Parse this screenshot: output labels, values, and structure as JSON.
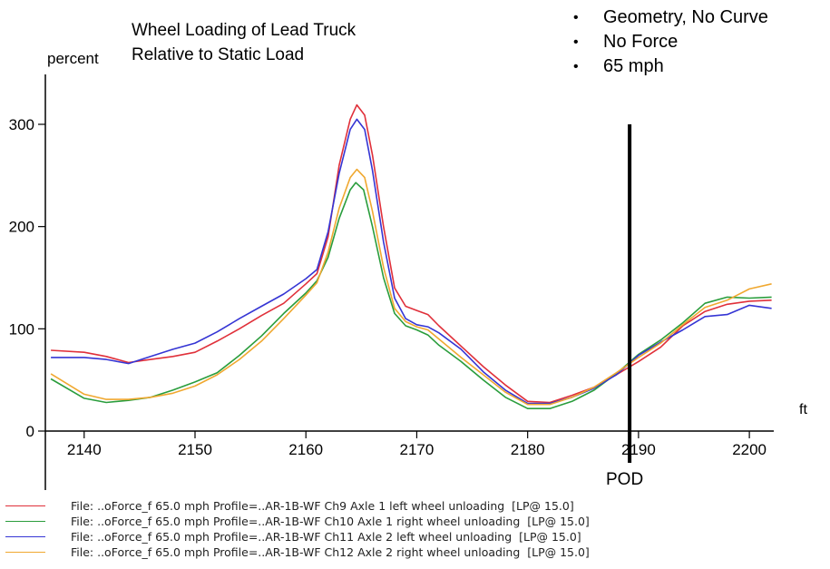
{
  "title_lines": [
    "Wheel Loading of Lead Truck",
    "Relative to Static Load"
  ],
  "bullets": [
    "Geometry, No Curve",
    "No Force",
    "65 mph"
  ],
  "chart_data": {
    "type": "line",
    "ylabel": "percent",
    "xlabel": "ft",
    "xlim": [
      2136.5,
      2202.2
    ],
    "ylim": [
      0,
      350
    ],
    "xticks": [
      2140,
      2150,
      2160,
      2170,
      2180,
      2190,
      2200
    ],
    "yticks": [
      0,
      100,
      200,
      300
    ],
    "annotation": {
      "label": "POD",
      "x": 2189.2
    },
    "series": [
      {
        "name": "File: ..oForce_f 65.0 mph Profile=..AR-1B-WF Ch9 Axle 1 left wheel unloading  [LP@ 15.0]",
        "color": "#e0303a",
        "points": [
          [
            2137,
            79
          ],
          [
            2140,
            77
          ],
          [
            2142,
            73
          ],
          [
            2144,
            67
          ],
          [
            2146,
            70
          ],
          [
            2148,
            73
          ],
          [
            2150,
            77
          ],
          [
            2152,
            88
          ],
          [
            2154,
            100
          ],
          [
            2156,
            113
          ],
          [
            2158,
            125
          ],
          [
            2160,
            144
          ],
          [
            2161,
            154
          ],
          [
            2162,
            190
          ],
          [
            2163,
            260
          ],
          [
            2164,
            305
          ],
          [
            2164.6,
            319
          ],
          [
            2165.3,
            309
          ],
          [
            2166,
            270
          ],
          [
            2167,
            200
          ],
          [
            2168,
            140
          ],
          [
            2169,
            122
          ],
          [
            2170,
            118
          ],
          [
            2171,
            114
          ],
          [
            2172,
            103
          ],
          [
            2174,
            83
          ],
          [
            2176,
            63
          ],
          [
            2178,
            45
          ],
          [
            2180,
            29
          ],
          [
            2182,
            28
          ],
          [
            2184,
            35
          ],
          [
            2186,
            43
          ],
          [
            2188,
            55
          ],
          [
            2190,
            68
          ],
          [
            2192,
            82
          ],
          [
            2194,
            103
          ],
          [
            2196,
            117
          ],
          [
            2198,
            124
          ],
          [
            2200,
            127
          ],
          [
            2202,
            128
          ]
        ]
      },
      {
        "name": "File: ..oForce_f 65.0 mph Profile=..AR-1B-WF Ch10 Axle 1 right wheel unloading  [LP@ 15.0]",
        "color": "#2a9d3c",
        "points": [
          [
            2137,
            51
          ],
          [
            2140,
            32
          ],
          [
            2142,
            28
          ],
          [
            2144,
            30
          ],
          [
            2146,
            33
          ],
          [
            2148,
            40
          ],
          [
            2150,
            48
          ],
          [
            2152,
            57
          ],
          [
            2154,
            74
          ],
          [
            2156,
            93
          ],
          [
            2158,
            115
          ],
          [
            2160,
            135
          ],
          [
            2161,
            147
          ],
          [
            2162,
            170
          ],
          [
            2163,
            208
          ],
          [
            2164,
            236
          ],
          [
            2164.5,
            243
          ],
          [
            2165.2,
            236
          ],
          [
            2166,
            200
          ],
          [
            2167,
            150
          ],
          [
            2168,
            115
          ],
          [
            2169,
            103
          ],
          [
            2170,
            99
          ],
          [
            2171,
            94
          ],
          [
            2172,
            84
          ],
          [
            2174,
            68
          ],
          [
            2176,
            50
          ],
          [
            2178,
            33
          ],
          [
            2180,
            22
          ],
          [
            2182,
            22
          ],
          [
            2184,
            29
          ],
          [
            2186,
            40
          ],
          [
            2188,
            56
          ],
          [
            2190,
            75
          ],
          [
            2192,
            89
          ],
          [
            2194,
            106
          ],
          [
            2196,
            125
          ],
          [
            2198,
            131
          ],
          [
            2200,
            130
          ],
          [
            2202,
            131
          ]
        ]
      },
      {
        "name": "File: ..oForce_f 65.0 mph Profile=..AR-1B-WF Ch11 Axle 2 left wheel unloading  [LP@ 15.0]",
        "color": "#3535d4",
        "points": [
          [
            2137,
            72
          ],
          [
            2140,
            72
          ],
          [
            2142,
            70
          ],
          [
            2144,
            66
          ],
          [
            2146,
            73
          ],
          [
            2148,
            80
          ],
          [
            2150,
            86
          ],
          [
            2152,
            97
          ],
          [
            2154,
            110
          ],
          [
            2156,
            122
          ],
          [
            2158,
            134
          ],
          [
            2160,
            149
          ],
          [
            2161,
            158
          ],
          [
            2162,
            195
          ],
          [
            2163,
            252
          ],
          [
            2164,
            295
          ],
          [
            2164.6,
            305
          ],
          [
            2165.3,
            295
          ],
          [
            2166,
            255
          ],
          [
            2167,
            185
          ],
          [
            2168,
            130
          ],
          [
            2169,
            110
          ],
          [
            2170,
            104
          ],
          [
            2171,
            102
          ],
          [
            2172,
            96
          ],
          [
            2174,
            80
          ],
          [
            2176,
            58
          ],
          [
            2178,
            40
          ],
          [
            2180,
            27
          ],
          [
            2182,
            27
          ],
          [
            2184,
            33
          ],
          [
            2186,
            42
          ],
          [
            2188,
            55
          ],
          [
            2190,
            74
          ],
          [
            2192,
            87
          ],
          [
            2194,
            99
          ],
          [
            2196,
            112
          ],
          [
            2198,
            114
          ],
          [
            2200,
            123
          ],
          [
            2202,
            120
          ]
        ]
      },
      {
        "name": "File: ..oForce_f 65.0 mph Profile=..AR-1B-WF Ch12 Axle 2 right wheel unloading  [LP@ 15.0]",
        "color": "#f0a830",
        "points": [
          [
            2137,
            56
          ],
          [
            2140,
            36
          ],
          [
            2142,
            31
          ],
          [
            2144,
            31
          ],
          [
            2146,
            33
          ],
          [
            2148,
            37
          ],
          [
            2150,
            44
          ],
          [
            2152,
            55
          ],
          [
            2154,
            70
          ],
          [
            2156,
            88
          ],
          [
            2158,
            110
          ],
          [
            2160,
            133
          ],
          [
            2161,
            145
          ],
          [
            2162,
            175
          ],
          [
            2163,
            218
          ],
          [
            2164,
            248
          ],
          [
            2164.6,
            256
          ],
          [
            2165.3,
            248
          ],
          [
            2166,
            215
          ],
          [
            2167,
            160
          ],
          [
            2168,
            120
          ],
          [
            2169,
            107
          ],
          [
            2170,
            102
          ],
          [
            2171,
            99
          ],
          [
            2172,
            90
          ],
          [
            2174,
            72
          ],
          [
            2176,
            55
          ],
          [
            2178,
            38
          ],
          [
            2180,
            26
          ],
          [
            2182,
            26
          ],
          [
            2184,
            33
          ],
          [
            2186,
            43
          ],
          [
            2188,
            57
          ],
          [
            2190,
            72
          ],
          [
            2192,
            86
          ],
          [
            2194,
            104
          ],
          [
            2196,
            121
          ],
          [
            2198,
            128
          ],
          [
            2200,
            139
          ],
          [
            2202,
            144
          ]
        ]
      }
    ]
  }
}
